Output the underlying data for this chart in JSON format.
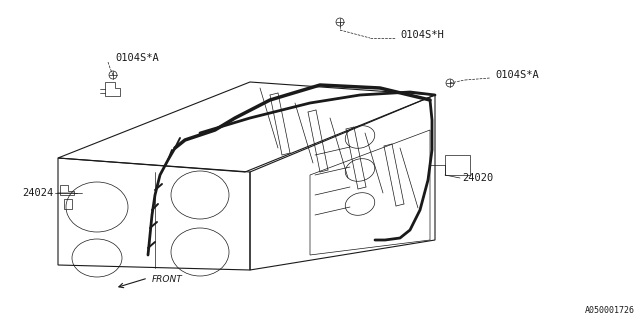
{
  "bg_color": "#ffffff",
  "line_color": "#1a1a1a",
  "thin": 0.5,
  "med": 0.8,
  "thick": 2.0,
  "labels": {
    "top_h": "0104S*H",
    "top_left_a": "0104S*A",
    "right_a": "0104S*A",
    "part_24024": "24024",
    "part_24020": "24020",
    "front": "FRONT",
    "partnum": "A050001726"
  }
}
